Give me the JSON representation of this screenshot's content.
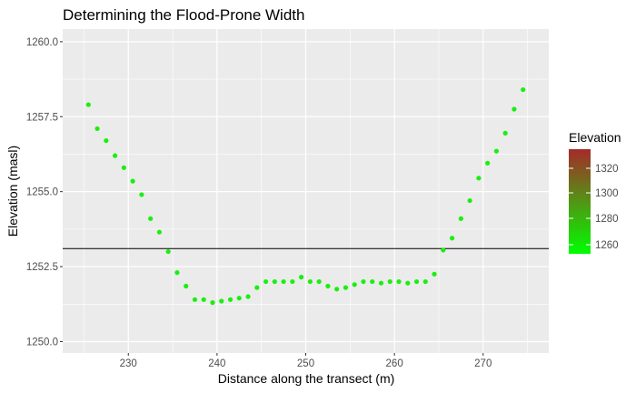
{
  "chart_data": {
    "type": "scatter",
    "title": "Determining the Flood-Prone Width",
    "xlabel": "Distance along the transect (m)",
    "ylabel": "Elevation (masl)",
    "xlim": [
      222.6,
      277.4
    ],
    "ylim": [
      1249.62,
      1260.42
    ],
    "x_ticks": [
      230,
      240,
      250,
      260,
      270
    ],
    "y_ticks": [
      1250.0,
      1252.5,
      1255.0,
      1257.5,
      1260.0
    ],
    "x_tick_labels": [
      "230",
      "240",
      "250",
      "260",
      "270"
    ],
    "y_tick_labels": [
      "1250.0",
      "1252.5",
      "1255.0",
      "1257.5",
      "1260.0"
    ],
    "grid": true,
    "hline": {
      "y": 1253.1,
      "color": "#000000"
    },
    "point_color": "#19f00f",
    "legend": {
      "title": "Elevation",
      "position": "right",
      "labels": [
        "1320",
        "1300",
        "1280",
        "1260"
      ],
      "gradient_top": "#a52a2a",
      "gradient_bottom": "#00ff00"
    },
    "x": [
      225.5,
      226.5,
      227.5,
      228.5,
      229.5,
      230.5,
      231.5,
      232.5,
      233.5,
      234.5,
      235.5,
      236.5,
      237.5,
      238.5,
      239.5,
      240.5,
      241.5,
      242.5,
      243.5,
      244.5,
      245.5,
      246.5,
      247.5,
      248.5,
      249.5,
      250.5,
      251.5,
      252.5,
      253.5,
      254.5,
      255.5,
      256.5,
      257.5,
      258.5,
      259.5,
      260.5,
      261.5,
      262.5,
      263.5,
      264.5,
      265.5,
      266.5,
      267.5,
      268.5,
      269.5,
      270.5,
      271.5,
      272.5,
      273.5,
      274.5
    ],
    "y": [
      1257.9,
      1257.1,
      1256.7,
      1256.2,
      1255.8,
      1255.35,
      1254.9,
      1254.1,
      1253.65,
      1253.0,
      1252.3,
      1251.85,
      1251.4,
      1251.4,
      1251.3,
      1251.35,
      1251.4,
      1251.45,
      1251.5,
      1251.8,
      1252.0,
      1252.0,
      1252.0,
      1252.0,
      1252.15,
      1252.0,
      1252.0,
      1251.85,
      1251.75,
      1251.8,
      1251.9,
      1252.0,
      1252.0,
      1251.95,
      1252.0,
      1252.0,
      1251.95,
      1252.0,
      1252.0,
      1252.25,
      1253.05,
      1253.45,
      1254.1,
      1254.7,
      1255.45,
      1255.95,
      1256.35,
      1256.95,
      1257.75,
      1258.4
    ]
  }
}
